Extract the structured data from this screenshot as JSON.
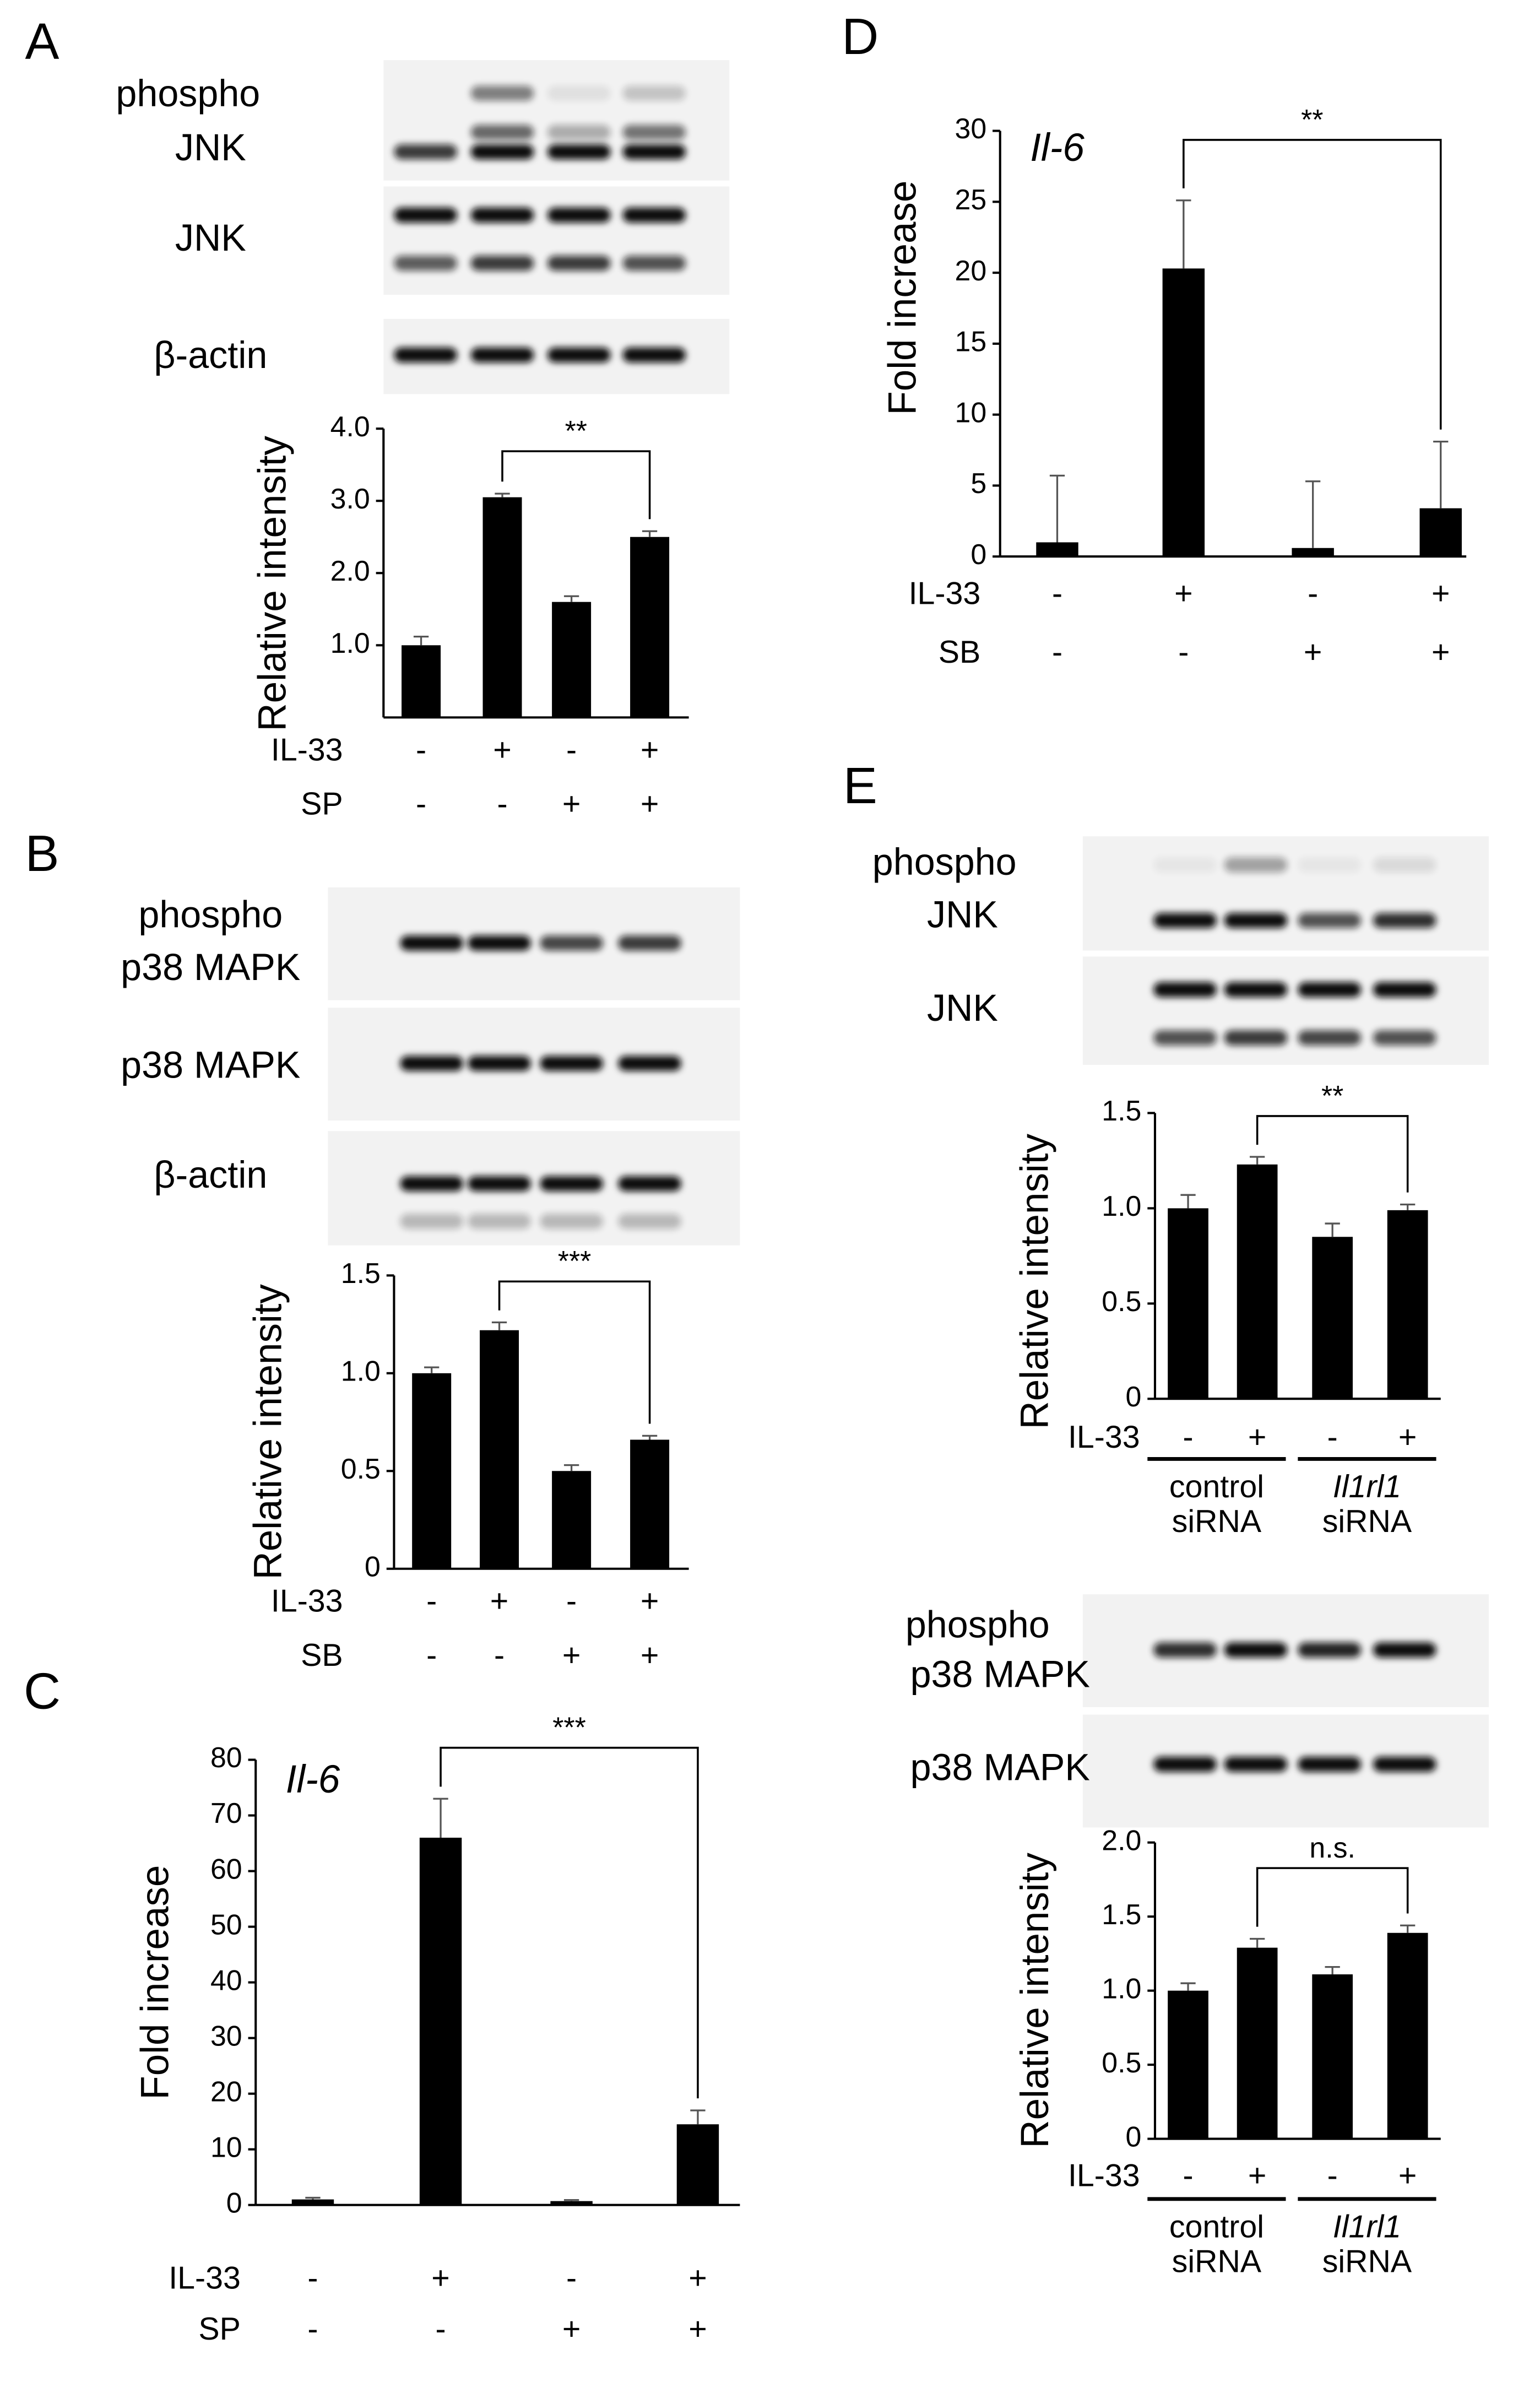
{
  "chart_data": [
    {
      "type": "bar",
      "panel": "A",
      "blot_labels": [
        [
          "phospho",
          "JNK"
        ],
        [
          "JNK"
        ],
        [
          "β-actin"
        ]
      ],
      "ylabel": "Relative intensity",
      "ylim": [
        0,
        4
      ],
      "yticks": [
        {
          "value": 1,
          "label": "1.0"
        },
        {
          "value": 2,
          "label": "2.0"
        },
        {
          "value": 3,
          "label": "3.0"
        },
        {
          "value": 4,
          "label": "4.0"
        }
      ],
      "values": [
        1.0,
        3.05,
        1.6,
        2.5
      ],
      "errors": [
        0.12,
        0.05,
        0.08,
        0.08
      ],
      "color": "#000000",
      "conditions": [
        {
          "name": "IL-33",
          "levels": [
            "-",
            "+",
            "-",
            "+"
          ]
        },
        {
          "name": "SP",
          "levels": [
            "-",
            "-",
            "+",
            "+"
          ]
        }
      ],
      "significance": "**"
    },
    {
      "type": "bar",
      "panel": "B",
      "blot_labels": [
        [
          "phospho",
          "p38 MAPK"
        ],
        [
          "p38 MAPK"
        ],
        [
          "β-actin"
        ]
      ],
      "ylabel": "Relative intensity",
      "ylim": [
        0,
        1.5
      ],
      "yticks": [
        0,
        0.5,
        {
          "value": 1,
          "label": "1.0"
        },
        1.5
      ],
      "values": [
        1.0,
        1.22,
        0.5,
        0.66
      ],
      "errors": [
        0.03,
        0.04,
        0.03,
        0.02
      ],
      "color": "#000000",
      "conditions": [
        {
          "name": "IL-33",
          "levels": [
            "-",
            "+",
            "-",
            "+"
          ]
        },
        {
          "name": "SB",
          "levels": [
            "-",
            "-",
            "+",
            "+"
          ]
        }
      ],
      "significance": "***"
    },
    {
      "type": "bar",
      "panel": "C",
      "title": "Il-6",
      "ylabel": "Fold increase",
      "ylim": [
        0,
        80
      ],
      "yticks": [
        0,
        10,
        20,
        30,
        40,
        50,
        60,
        70,
        80
      ],
      "values": [
        1.0,
        66,
        0.7,
        14.5
      ],
      "errors": [
        0.3,
        7,
        0.2,
        2.5
      ],
      "color": "#000000",
      "conditions": [
        {
          "name": "IL-33",
          "levels": [
            "-",
            "+",
            "-",
            "+"
          ]
        },
        {
          "name": "SP",
          "levels": [
            "-",
            "-",
            "+",
            "+"
          ]
        }
      ],
      "significance": "***"
    },
    {
      "type": "bar",
      "panel": "D",
      "title": "Il-6",
      "ylabel": "Fold increase",
      "ylim": [
        0,
        30
      ],
      "yticks": [
        0,
        5,
        10,
        15,
        20,
        25,
        30
      ],
      "values": [
        1.0,
        20.3,
        0.6,
        3.4
      ],
      "errors": [
        4.7,
        4.8,
        4.7,
        4.7
      ],
      "color": "#000000",
      "conditions": [
        {
          "name": "IL-33",
          "levels": [
            "-",
            "+",
            "-",
            "+"
          ]
        },
        {
          "name": "SB",
          "levels": [
            "-",
            "-",
            "+",
            "+"
          ]
        }
      ],
      "significance": "**"
    },
    {
      "type": "bar",
      "panel": "E",
      "blot_labels": [
        [
          "phospho",
          "JNK"
        ],
        [
          "JNK"
        ]
      ],
      "ylabel": "Relative intensity",
      "ylim": [
        0,
        1.5
      ],
      "yticks": [
        0,
        0.5,
        {
          "value": 1,
          "label": "1.0"
        },
        1.5
      ],
      "values": [
        1.0,
        1.23,
        0.85,
        0.99
      ],
      "errors": [
        0.07,
        0.04,
        0.07,
        0.03
      ],
      "color": "#000000",
      "conditions": [
        {
          "name": "IL-33",
          "levels": [
            "-",
            "+",
            "-",
            "+"
          ]
        }
      ],
      "groups": [
        [
          "control",
          "siRNA"
        ],
        [
          "Il1rl1",
          "siRNA"
        ]
      ],
      "significance": "**"
    },
    {
      "type": "bar",
      "blot_labels": [
        [
          "phospho",
          "p38 MAPK"
        ],
        [
          "p38 MAPK"
        ]
      ],
      "ylabel": "Relative intensity",
      "ylim": [
        0,
        2
      ],
      "yticks": [
        0,
        0.5,
        {
          "value": 1,
          "label": "1.0"
        },
        1.5,
        {
          "value": 2,
          "label": "2.0"
        }
      ],
      "values": [
        1.0,
        1.29,
        1.11,
        1.39
      ],
      "errors": [
        0.05,
        0.06,
        0.05,
        0.05
      ],
      "color": "#000000",
      "conditions": [
        {
          "name": "IL-33",
          "levels": [
            "-",
            "+",
            "-",
            "+"
          ]
        }
      ],
      "groups": [
        [
          "control",
          "siRNA"
        ],
        [
          "Il1rl1",
          "siRNA"
        ]
      ],
      "significance": "n.s."
    }
  ]
}
